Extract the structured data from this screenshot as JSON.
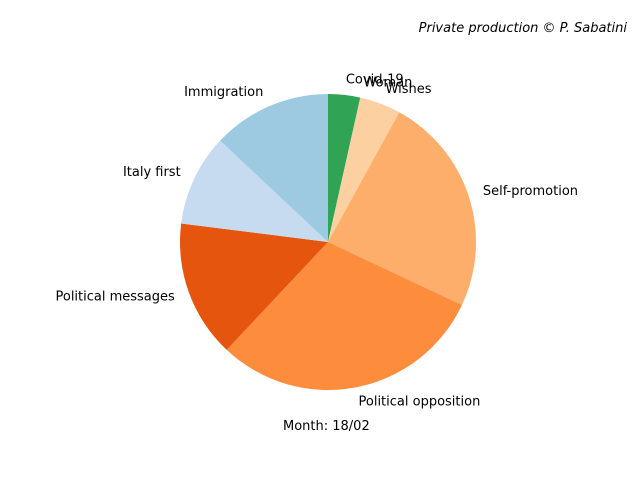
{
  "chart_data": {
    "type": "pie",
    "title": "",
    "credit": "Private production © P. Sabatini",
    "caption": "Month: 18/02",
    "slices": [
      {
        "label": "Covid-19",
        "value": 3.5,
        "color": "#31a354"
      },
      {
        "label": "Woman",
        "value": 0.0,
        "color": "#a1d99b"
      },
      {
        "label": "Wishes",
        "value": 4.5,
        "color": "#fdd0a2"
      },
      {
        "label": "Self-promotion",
        "value": 24.0,
        "color": "#fdae6b"
      },
      {
        "label": "Political opposition",
        "value": 30.0,
        "color": "#fd8d3c"
      },
      {
        "label": "Political messages",
        "value": 15.0,
        "color": "#e6550d"
      },
      {
        "label": "Italy first",
        "value": 10.0,
        "color": "#c6dbef"
      },
      {
        "label": "Immigration",
        "value": 13.0,
        "color": "#9ecae1"
      }
    ],
    "start_angle_deg": 90,
    "direction": "clockwise",
    "legend": "none"
  }
}
